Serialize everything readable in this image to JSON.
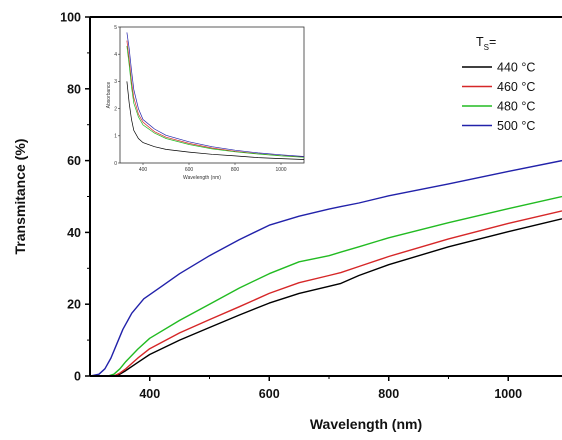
{
  "chart_data": [
    {
      "id": "main",
      "type": "line",
      "xlabel": "Wavelength (nm)",
      "ylabel": "Transmitance (%)",
      "xlim": [
        300,
        1090
      ],
      "ylim": [
        0,
        100
      ],
      "xticks": [
        400,
        600,
        800,
        1000
      ],
      "yticks": [
        0,
        20,
        40,
        60,
        80,
        100
      ],
      "legend": {
        "title": "T",
        "title_subscript": "S",
        "title_suffix": "=",
        "position": "top-right"
      },
      "series": [
        {
          "name": "440 °C",
          "color": "#000000",
          "x": [
            300,
            340,
            350,
            360,
            380,
            400,
            450,
            500,
            550,
            600,
            650,
            700,
            720,
            750,
            800,
            900,
            1000,
            1090
          ],
          "y": [
            0,
            0,
            0.5,
            1.5,
            3.8,
            6,
            10,
            13.5,
            17,
            20.3,
            23,
            25,
            25.8,
            28,
            31,
            36,
            40.2,
            43.8
          ]
        },
        {
          "name": "460 °C",
          "color": "#d62728",
          "x": [
            300,
            340,
            350,
            360,
            380,
            400,
            450,
            500,
            550,
            600,
            650,
            700,
            720,
            750,
            800,
            900,
            1000,
            1090
          ],
          "y": [
            0,
            0,
            0.8,
            2,
            5,
            7.6,
            12,
            15.7,
            19.3,
            23,
            26,
            28,
            28.8,
            30.5,
            33.3,
            38.2,
            42.5,
            46
          ]
        },
        {
          "name": "480 °C",
          "color": "#22bb22",
          "x": [
            300,
            330,
            340,
            350,
            360,
            380,
            400,
            450,
            500,
            550,
            600,
            650,
            700,
            720,
            750,
            800,
            900,
            1000,
            1090
          ],
          "y": [
            0,
            0,
            0.5,
            2,
            4,
            7.5,
            10.5,
            15.5,
            20,
            24.5,
            28.5,
            31.8,
            33.5,
            34.5,
            36,
            38.5,
            42.7,
            46.6,
            50
          ]
        },
        {
          "name": "500 °C",
          "color": "#2222aa",
          "x": [
            300,
            315,
            325,
            335,
            345,
            355,
            370,
            390,
            420,
            450,
            500,
            550,
            600,
            650,
            700,
            720,
            750,
            800,
            900,
            1000,
            1090
          ],
          "y": [
            0,
            0.5,
            2,
            5,
            9,
            13,
            17.5,
            21.5,
            25,
            28.5,
            33.5,
            38,
            42,
            44.5,
            46.5,
            47.2,
            48.2,
            50.2,
            53.5,
            57,
            60
          ]
        }
      ]
    },
    {
      "id": "inset",
      "type": "line",
      "xlabel": "Wavelength (nm)",
      "ylabel": "Absorbance",
      "xlim": [
        300,
        1100
      ],
      "ylim": [
        0,
        5
      ],
      "xticks": [
        400,
        600,
        800,
        1000
      ],
      "yticks": [
        0,
        1,
        2,
        3,
        4,
        5
      ],
      "series": [
        {
          "name": "440 °C",
          "color": "#000000",
          "x": [
            330,
            340,
            350,
            360,
            380,
            400,
            450,
            500,
            600,
            700,
            800,
            900,
            1000,
            1100
          ],
          "y": [
            3.0,
            2.2,
            1.6,
            1.2,
            0.9,
            0.75,
            0.6,
            0.5,
            0.4,
            0.32,
            0.26,
            0.2,
            0.16,
            0.13
          ]
        },
        {
          "name": "460 °C",
          "color": "#d62728",
          "x": [
            330,
            340,
            350,
            360,
            380,
            400,
            450,
            500,
            600,
            700,
            800,
            900,
            1000,
            1100
          ],
          "y": [
            4.5,
            3.8,
            3.0,
            2.4,
            1.8,
            1.5,
            1.15,
            0.95,
            0.72,
            0.55,
            0.43,
            0.34,
            0.27,
            0.22
          ]
        },
        {
          "name": "480 °C",
          "color": "#22bb22",
          "x": [
            330,
            340,
            350,
            360,
            380,
            400,
            450,
            500,
            600,
            700,
            800,
            900,
            1000,
            1100
          ],
          "y": [
            4.3,
            3.6,
            2.8,
            2.2,
            1.7,
            1.4,
            1.1,
            0.9,
            0.68,
            0.52,
            0.41,
            0.33,
            0.26,
            0.21
          ]
        },
        {
          "name": "500 °C",
          "color": "#2222aa",
          "x": [
            330,
            340,
            350,
            360,
            380,
            400,
            450,
            500,
            600,
            700,
            800,
            900,
            1000,
            1100
          ],
          "y": [
            4.8,
            4.2,
            3.4,
            2.7,
            2.0,
            1.6,
            1.25,
            1.02,
            0.78,
            0.6,
            0.47,
            0.37,
            0.3,
            0.24
          ]
        }
      ]
    }
  ]
}
